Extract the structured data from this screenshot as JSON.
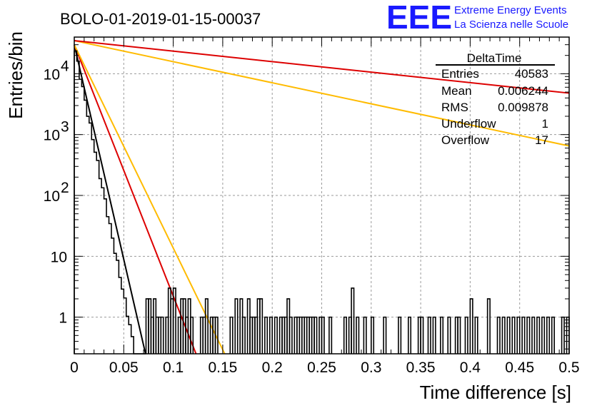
{
  "chart_data": {
    "type": "histogram",
    "title": "BOLO-01-2019-01-15-00037",
    "xlabel": "Time difference [s]",
    "ylabel": "Entries/bin",
    "xlim": [
      0,
      0.5
    ],
    "ylim": [
      0.25,
      40000
    ],
    "yscale": "log",
    "grid": true,
    "x_ticks": [
      "0",
      "0.05",
      "0.1",
      "0.15",
      "0.2",
      "0.25",
      "0.3",
      "0.35",
      "0.4",
      "0.45",
      "0.5"
    ],
    "y_ticks": [
      {
        "value": 1,
        "label": "1"
      },
      {
        "value": 10,
        "label": "10"
      },
      {
        "value": 100,
        "label": "10",
        "exp": "2"
      },
      {
        "value": 1000,
        "label": "10",
        "exp": "3"
      },
      {
        "value": 10000,
        "label": "10",
        "exp": "4"
      }
    ],
    "histogram": {
      "bin_width": 0.0025,
      "approx_decay_start": 30000,
      "approx_decay_slope": 189,
      "tail_bins": [
        {
          "x": 0.0725,
          "y": 2
        },
        {
          "x": 0.075,
          "y": 2
        },
        {
          "x": 0.0775,
          "y": 1
        },
        {
          "x": 0.08,
          "y": 2
        },
        {
          "x": 0.0825,
          "y": 1
        },
        {
          "x": 0.085,
          "y": 1
        },
        {
          "x": 0.0875,
          "y": 1
        },
        {
          "x": 0.0925,
          "y": 1
        },
        {
          "x": 0.095,
          "y": 3
        },
        {
          "x": 0.0975,
          "y": 2
        },
        {
          "x": 0.1,
          "y": 3
        },
        {
          "x": 0.105,
          "y": 1
        },
        {
          "x": 0.1075,
          "y": 2
        },
        {
          "x": 0.11,
          "y": 2
        },
        {
          "x": 0.1125,
          "y": 1
        },
        {
          "x": 0.115,
          "y": 2
        },
        {
          "x": 0.1175,
          "y": 1
        },
        {
          "x": 0.1275,
          "y": 1
        },
        {
          "x": 0.13,
          "y": 1
        },
        {
          "x": 0.1325,
          "y": 2
        },
        {
          "x": 0.1375,
          "y": 1
        },
        {
          "x": 0.14,
          "y": 1
        },
        {
          "x": 0.1425,
          "y": 1
        },
        {
          "x": 0.1575,
          "y": 1
        },
        {
          "x": 0.1625,
          "y": 2
        },
        {
          "x": 0.1675,
          "y": 2
        },
        {
          "x": 0.17,
          "y": 1
        },
        {
          "x": 0.175,
          "y": 2
        },
        {
          "x": 0.1775,
          "y": 1
        },
        {
          "x": 0.18,
          "y": 1
        },
        {
          "x": 0.1825,
          "y": 1
        },
        {
          "x": 0.185,
          "y": 2
        },
        {
          "x": 0.1875,
          "y": 2
        },
        {
          "x": 0.1925,
          "y": 1
        },
        {
          "x": 0.1975,
          "y": 1
        },
        {
          "x": 0.2025,
          "y": 1
        },
        {
          "x": 0.2075,
          "y": 1
        },
        {
          "x": 0.21,
          "y": 1
        },
        {
          "x": 0.2125,
          "y": 1
        },
        {
          "x": 0.215,
          "y": 2
        },
        {
          "x": 0.2175,
          "y": 1
        },
        {
          "x": 0.2225,
          "y": 1
        },
        {
          "x": 0.225,
          "y": 1
        },
        {
          "x": 0.2275,
          "y": 1
        },
        {
          "x": 0.23,
          "y": 1
        },
        {
          "x": 0.2325,
          "y": 1
        },
        {
          "x": 0.235,
          "y": 1
        },
        {
          "x": 0.2375,
          "y": 1
        },
        {
          "x": 0.24,
          "y": 1
        },
        {
          "x": 0.2425,
          "y": 1
        },
        {
          "x": 0.2475,
          "y": 1
        },
        {
          "x": 0.25,
          "y": 1
        },
        {
          "x": 0.2575,
          "y": 1
        },
        {
          "x": 0.2725,
          "y": 1
        },
        {
          "x": 0.2775,
          "y": 1
        },
        {
          "x": 0.28,
          "y": 3
        },
        {
          "x": 0.285,
          "y": 1
        },
        {
          "x": 0.2925,
          "y": 1
        },
        {
          "x": 0.3,
          "y": 1
        },
        {
          "x": 0.3125,
          "y": 1
        },
        {
          "x": 0.3275,
          "y": 1
        },
        {
          "x": 0.3375,
          "y": 1
        },
        {
          "x": 0.3475,
          "y": 1
        },
        {
          "x": 0.35,
          "y": 1
        },
        {
          "x": 0.3575,
          "y": 1
        },
        {
          "x": 0.3625,
          "y": 1
        },
        {
          "x": 0.37,
          "y": 1
        },
        {
          "x": 0.3775,
          "y": 1
        },
        {
          "x": 0.385,
          "y": 1
        },
        {
          "x": 0.3875,
          "y": 1
        },
        {
          "x": 0.395,
          "y": 1
        },
        {
          "x": 0.4,
          "y": 2
        },
        {
          "x": 0.405,
          "y": 1
        },
        {
          "x": 0.4175,
          "y": 2
        },
        {
          "x": 0.4275,
          "y": 1
        },
        {
          "x": 0.4325,
          "y": 1
        },
        {
          "x": 0.4375,
          "y": 1
        },
        {
          "x": 0.4425,
          "y": 1
        },
        {
          "x": 0.4475,
          "y": 1
        },
        {
          "x": 0.4525,
          "y": 1
        },
        {
          "x": 0.4575,
          "y": 1
        },
        {
          "x": 0.4625,
          "y": 1
        },
        {
          "x": 0.4675,
          "y": 1
        },
        {
          "x": 0.4725,
          "y": 1
        },
        {
          "x": 0.4775,
          "y": 1
        },
        {
          "x": 0.4825,
          "y": 1
        },
        {
          "x": 0.4925,
          "y": 1
        },
        {
          "x": 0.4975,
          "y": 1
        }
      ]
    },
    "fit_lines": [
      {
        "color": "#000000",
        "x": [
          0.0,
          0.072
        ],
        "y": [
          30000,
          0.25
        ]
      },
      {
        "color": "#dd0000",
        "x": [
          0.0,
          0.123
        ],
        "y": [
          30000,
          0.25
        ]
      },
      {
        "color": "#ffbb00",
        "x": [
          0.0,
          0.152
        ],
        "y": [
          30000,
          0.25
        ]
      },
      {
        "color": "#ffbb00",
        "x": [
          0.0,
          0.5
        ],
        "y": [
          35000,
          650
        ]
      },
      {
        "color": "#dd0000",
        "x": [
          0.0,
          0.5
        ],
        "y": [
          35000,
          4800
        ]
      }
    ],
    "stats_box": {
      "title": "DeltaTime",
      "rows": [
        {
          "label": "Entries",
          "value": "40583"
        },
        {
          "label": "Mean",
          "value": "0.006244"
        },
        {
          "label": "RMS",
          "value": "0.009878"
        },
        {
          "label": "Underflow",
          "value": "1"
        },
        {
          "label": "Overflow",
          "value": "17"
        }
      ]
    },
    "logo": {
      "mark": "EEE",
      "line1": "Extreme Energy Events",
      "line2": "La Scienza nelle Scuole",
      "color": "#1a1aff"
    }
  }
}
